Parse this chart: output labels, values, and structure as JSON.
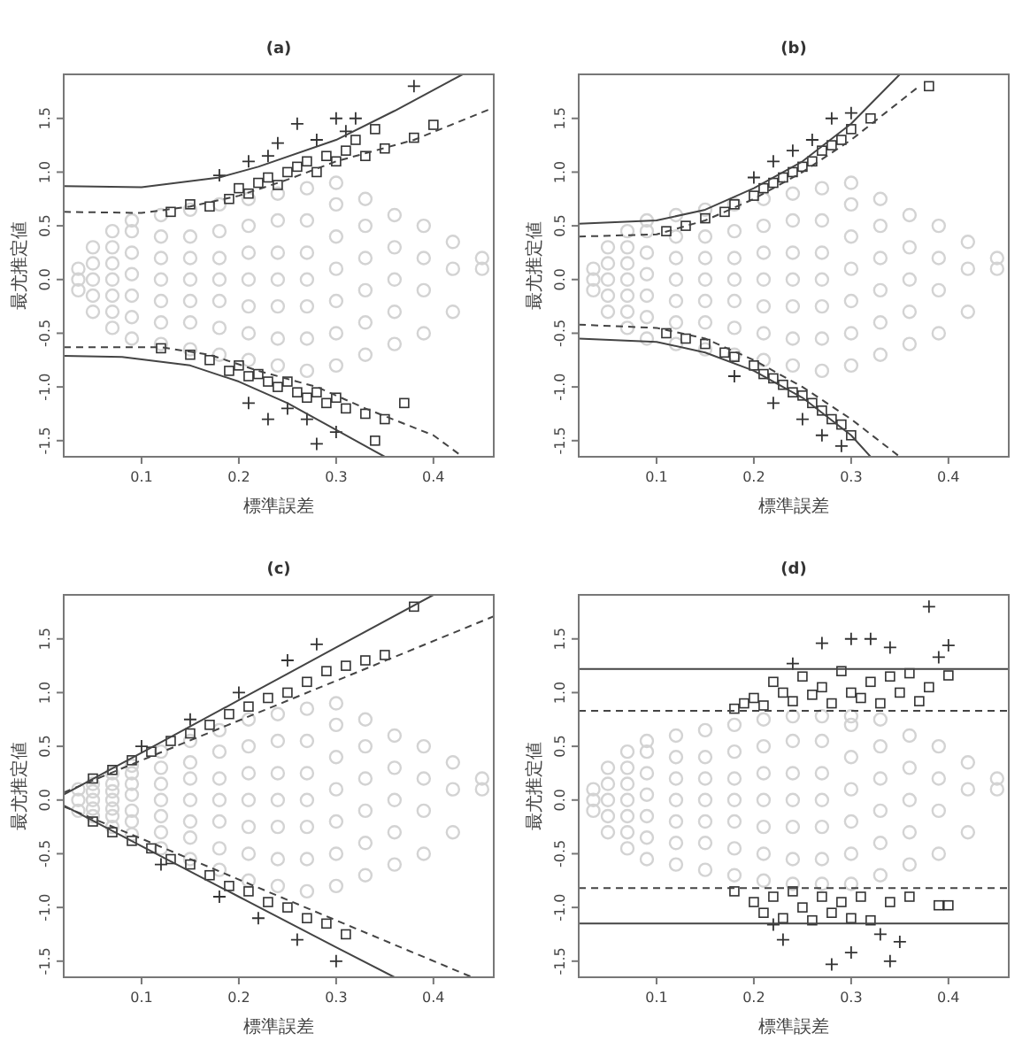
{
  "chart_data": [
    {
      "type": "scatter",
      "title": "(a)",
      "xlabel": "標準誤差",
      "ylabel": "最尤推定値",
      "xlim": [
        0.02,
        0.462
      ],
      "ylim": [
        -1.65,
        1.91
      ],
      "xticks": [
        0.1,
        0.2,
        0.3,
        0.4
      ],
      "yticks": [
        -1.5,
        {
          "value": -1,
          "label": "-1.0"
        },
        -0.5,
        {
          "value": 0,
          "label": "0.0"
        },
        0.5,
        {
          "value": 1,
          "label": "1.0"
        },
        1.5
      ],
      "series": [
        {
          "type": "scatter",
          "marker": "circle",
          "color": "#d3d3d3",
          "x": [
            0.035,
            0.035,
            0.035,
            0.05,
            0.05,
            0.05,
            0.05,
            0.05,
            0.07,
            0.07,
            0.07,
            0.07,
            0.07,
            0.07,
            0.07,
            0.09,
            0.09,
            0.09,
            0.09,
            0.09,
            0.09,
            0.09,
            0.12,
            0.12,
            0.12,
            0.12,
            0.12,
            0.12,
            0.12,
            0.15,
            0.15,
            0.15,
            0.15,
            0.15,
            0.15,
            0.15,
            0.18,
            0.18,
            0.18,
            0.18,
            0.18,
            0.18,
            0.18,
            0.21,
            0.21,
            0.21,
            0.21,
            0.21,
            0.21,
            0.21,
            0.24,
            0.24,
            0.24,
            0.24,
            0.24,
            0.24,
            0.24,
            0.27,
            0.27,
            0.27,
            0.27,
            0.27,
            0.27,
            0.27,
            0.3,
            0.3,
            0.3,
            0.3,
            0.3,
            0.3,
            0.3,
            0.33,
            0.33,
            0.33,
            0.33,
            0.33,
            0.33,
            0.36,
            0.36,
            0.36,
            0.36,
            0.36,
            0.39,
            0.39,
            0.39,
            0.39,
            0.42,
            0.42,
            0.42,
            0.45,
            0.45
          ],
          "values": [
            -0.1,
            0,
            0.1,
            -0.3,
            -0.15,
            0,
            0.15,
            0.3,
            -0.45,
            -0.3,
            -0.15,
            0,
            0.15,
            0.3,
            0.45,
            -0.55,
            -0.35,
            -0.15,
            0.05,
            0.25,
            0.45,
            0.55,
            -0.6,
            -0.4,
            -0.2,
            0,
            0.2,
            0.4,
            0.6,
            -0.65,
            -0.4,
            -0.2,
            0,
            0.2,
            0.4,
            0.65,
            -0.7,
            -0.45,
            -0.2,
            0,
            0.2,
            0.45,
            0.7,
            -0.75,
            -0.5,
            -0.25,
            0,
            0.25,
            0.5,
            0.75,
            -0.8,
            -0.55,
            -0.25,
            0,
            0.25,
            0.55,
            0.8,
            -0.85,
            -0.55,
            -0.25,
            0,
            0.25,
            0.55,
            0.85,
            -0.8,
            -0.5,
            -0.2,
            0.1,
            0.4,
            0.7,
            0.9,
            -0.7,
            -0.4,
            -0.1,
            0.2,
            0.5,
            0.75,
            -0.6,
            -0.3,
            0,
            0.3,
            0.6,
            -0.5,
            -0.1,
            0.2,
            0.5,
            -0.3,
            0.1,
            0.35,
            0.1,
            0.2
          ]
        },
        {
          "type": "scatter",
          "marker": "square",
          "color": "#333333",
          "x": [
            0.13,
            0.15,
            0.17,
            0.19,
            0.2,
            0.21,
            0.22,
            0.23,
            0.24,
            0.25,
            0.26,
            0.27,
            0.28,
            0.29,
            0.3,
            0.31,
            0.32,
            0.33,
            0.35,
            0.38,
            0.4,
            0.34,
            0.12,
            0.15,
            0.17,
            0.19,
            0.2,
            0.21,
            0.22,
            0.23,
            0.24,
            0.25,
            0.26,
            0.27,
            0.28,
            0.29,
            0.3,
            0.31,
            0.33,
            0.35,
            0.34,
            0.37
          ],
          "values": [
            0.63,
            0.7,
            0.68,
            0.75,
            0.85,
            0.8,
            0.9,
            0.95,
            0.88,
            1.0,
            1.05,
            1.1,
            1.0,
            1.15,
            1.1,
            1.2,
            1.3,
            1.15,
            1.22,
            1.32,
            1.44,
            1.4,
            -0.64,
            -0.7,
            -0.75,
            -0.85,
            -0.8,
            -0.9,
            -0.88,
            -0.95,
            -1.0,
            -0.95,
            -1.05,
            -1.1,
            -1.05,
            -1.15,
            -1.1,
            -1.2,
            -1.25,
            -1.3,
            -1.5,
            -1.15
          ]
        },
        {
          "type": "scatter",
          "marker": "cross",
          "color": "#333333",
          "x": [
            0.18,
            0.21,
            0.23,
            0.24,
            0.26,
            0.28,
            0.3,
            0.32,
            0.31,
            0.38,
            0.21,
            0.23,
            0.25,
            0.28,
            0.3,
            0.27
          ],
          "values": [
            0.97,
            1.1,
            1.15,
            1.27,
            1.45,
            1.3,
            1.5,
            1.5,
            1.38,
            1.8,
            -1.15,
            -1.3,
            -1.2,
            -1.53,
            -1.42,
            -1.3
          ]
        },
        {
          "type": "line",
          "line_style": "solid",
          "color": "#444444",
          "x": [
            0.02,
            0.1,
            0.18,
            0.22,
            0.3,
            0.36,
            0.43
          ],
          "values": [
            0.87,
            0.86,
            0.95,
            1.05,
            1.3,
            1.57,
            1.91
          ]
        },
        {
          "type": "line",
          "line_style": "solid",
          "color": "#444444",
          "x": [
            0.02,
            0.08,
            0.15,
            0.2,
            0.25,
            0.3,
            0.35
          ],
          "values": [
            -0.71,
            -0.72,
            -0.8,
            -0.95,
            -1.15,
            -1.4,
            -1.65
          ]
        },
        {
          "type": "line",
          "line_style": "dashed",
          "color": "#444444",
          "x": [
            0.02,
            0.1,
            0.15,
            0.2,
            0.25,
            0.3,
            0.38,
            0.462
          ],
          "values": [
            0.63,
            0.62,
            0.68,
            0.78,
            0.93,
            1.1,
            1.3,
            1.6
          ]
        },
        {
          "type": "line",
          "line_style": "dashed",
          "color": "#444444",
          "x": [
            0.02,
            0.12,
            0.17,
            0.22,
            0.28,
            0.33,
            0.4,
            0.43
          ],
          "values": [
            -0.63,
            -0.63,
            -0.7,
            -0.85,
            -1.0,
            -1.2,
            -1.45,
            -1.65
          ]
        }
      ]
    },
    {
      "type": "scatter",
      "title": "(b)",
      "xlabel": "標準誤差",
      "ylabel": "最尤推定値",
      "xlim": [
        0.02,
        0.462
      ],
      "ylim": [
        -1.65,
        1.91
      ],
      "xticks": [
        0.1,
        0.2,
        0.3,
        0.4
      ],
      "yticks": [
        -1.5,
        {
          "value": -1,
          "label": "-1.0"
        },
        -0.5,
        {
          "value": 0,
          "label": "0.0"
        },
        0.5,
        {
          "value": 1,
          "label": "1.0"
        },
        1.5
      ],
      "series": [
        {
          "type": "scatter",
          "marker": "circle",
          "color": "#d3d3d3",
          "x": [
            0.035,
            0.035,
            0.035,
            0.05,
            0.05,
            0.05,
            0.05,
            0.05,
            0.07,
            0.07,
            0.07,
            0.07,
            0.07,
            0.07,
            0.07,
            0.09,
            0.09,
            0.09,
            0.09,
            0.09,
            0.09,
            0.09,
            0.12,
            0.12,
            0.12,
            0.12,
            0.12,
            0.12,
            0.12,
            0.15,
            0.15,
            0.15,
            0.15,
            0.15,
            0.15,
            0.15,
            0.18,
            0.18,
            0.18,
            0.18,
            0.18,
            0.18,
            0.18,
            0.21,
            0.21,
            0.21,
            0.21,
            0.21,
            0.21,
            0.21,
            0.24,
            0.24,
            0.24,
            0.24,
            0.24,
            0.24,
            0.24,
            0.27,
            0.27,
            0.27,
            0.27,
            0.27,
            0.27,
            0.27,
            0.3,
            0.3,
            0.3,
            0.3,
            0.3,
            0.3,
            0.3,
            0.33,
            0.33,
            0.33,
            0.33,
            0.33,
            0.33,
            0.36,
            0.36,
            0.36,
            0.36,
            0.36,
            0.39,
            0.39,
            0.39,
            0.39,
            0.42,
            0.42,
            0.42,
            0.45,
            0.45
          ],
          "values": [
            -0.1,
            0,
            0.1,
            -0.3,
            -0.15,
            0,
            0.15,
            0.3,
            -0.45,
            -0.3,
            -0.15,
            0,
            0.15,
            0.3,
            0.45,
            -0.55,
            -0.35,
            -0.15,
            0.05,
            0.25,
            0.45,
            0.55,
            -0.6,
            -0.4,
            -0.2,
            0,
            0.2,
            0.4,
            0.6,
            -0.65,
            -0.4,
            -0.2,
            0,
            0.2,
            0.4,
            0.65,
            -0.7,
            -0.45,
            -0.2,
            0,
            0.2,
            0.45,
            0.7,
            -0.75,
            -0.5,
            -0.25,
            0,
            0.25,
            0.5,
            0.75,
            -0.8,
            -0.55,
            -0.25,
            0,
            0.25,
            0.55,
            0.8,
            -0.85,
            -0.55,
            -0.25,
            0,
            0.25,
            0.55,
            0.85,
            -0.8,
            -0.5,
            -0.2,
            0.1,
            0.4,
            0.7,
            0.9,
            -0.7,
            -0.4,
            -0.1,
            0.2,
            0.5,
            0.75,
            -0.6,
            -0.3,
            0,
            0.3,
            0.6,
            -0.5,
            -0.1,
            0.2,
            0.5,
            -0.3,
            0.1,
            0.35,
            0.1,
            0.2
          ]
        },
        {
          "type": "scatter",
          "marker": "square",
          "color": "#333333",
          "x": [
            0.11,
            0.13,
            0.15,
            0.17,
            0.18,
            0.2,
            0.21,
            0.22,
            0.23,
            0.24,
            0.25,
            0.26,
            0.27,
            0.28,
            0.29,
            0.3,
            0.32,
            0.38,
            0.11,
            0.13,
            0.15,
            0.17,
            0.18,
            0.2,
            0.21,
            0.22,
            0.23,
            0.24,
            0.25,
            0.26,
            0.27,
            0.28,
            0.29,
            0.3
          ],
          "values": [
            0.45,
            0.5,
            0.57,
            0.63,
            0.7,
            0.78,
            0.85,
            0.9,
            0.95,
            1.0,
            1.05,
            1.1,
            1.2,
            1.25,
            1.3,
            1.4,
            1.5,
            1.8,
            -0.5,
            -0.55,
            -0.6,
            -0.68,
            -0.72,
            -0.8,
            -0.88,
            -0.92,
            -0.98,
            -1.05,
            -1.08,
            -1.15,
            -1.22,
            -1.3,
            -1.35,
            -1.45
          ]
        },
        {
          "type": "scatter",
          "marker": "cross",
          "color": "#333333",
          "x": [
            0.2,
            0.22,
            0.24,
            0.26,
            0.28,
            0.3,
            0.18,
            0.22,
            0.25,
            0.27,
            0.29
          ],
          "values": [
            0.95,
            1.1,
            1.2,
            1.3,
            1.5,
            1.55,
            -0.9,
            -1.15,
            -1.3,
            -1.45,
            -1.55
          ]
        },
        {
          "type": "line",
          "line_style": "solid",
          "color": "#444444",
          "x": [
            0.02,
            0.1,
            0.15,
            0.2,
            0.25,
            0.3,
            0.35
          ],
          "values": [
            0.52,
            0.55,
            0.65,
            0.85,
            1.1,
            1.45,
            1.91
          ]
        },
        {
          "type": "line",
          "line_style": "solid",
          "color": "#444444",
          "x": [
            0.02,
            0.1,
            0.15,
            0.2,
            0.25,
            0.3,
            0.32
          ],
          "values": [
            -0.55,
            -0.58,
            -0.68,
            -0.85,
            -1.1,
            -1.45,
            -1.65
          ]
        },
        {
          "type": "line",
          "line_style": "dashed",
          "color": "#444444",
          "x": [
            0.02,
            0.1,
            0.15,
            0.2,
            0.25,
            0.3,
            0.37
          ],
          "values": [
            0.4,
            0.42,
            0.55,
            0.75,
            1.0,
            1.3,
            1.8
          ]
        },
        {
          "type": "line",
          "line_style": "dashed",
          "color": "#444444",
          "x": [
            0.02,
            0.1,
            0.15,
            0.2,
            0.25,
            0.3,
            0.35
          ],
          "values": [
            -0.42,
            -0.45,
            -0.55,
            -0.75,
            -1.0,
            -1.3,
            -1.65
          ]
        }
      ]
    },
    {
      "type": "scatter",
      "title": "(c)",
      "xlabel": "標準誤差",
      "ylabel": "最尤推定値",
      "xlim": [
        0.02,
        0.462
      ],
      "ylim": [
        -1.65,
        1.91
      ],
      "xticks": [
        0.1,
        0.2,
        0.3,
        0.4
      ],
      "yticks": [
        -1.5,
        {
          "value": -1,
          "label": "-1.0"
        },
        -0.5,
        {
          "value": 0,
          "label": "0.0"
        },
        0.5,
        {
          "value": 1,
          "label": "1.0"
        },
        1.5
      ],
      "series": [
        {
          "type": "scatter",
          "marker": "circle",
          "color": "#d3d3d3",
          "x": [
            0.035,
            0.035,
            0.035,
            0.05,
            0.05,
            0.05,
            0.05,
            0.05,
            0.07,
            0.07,
            0.07,
            0.07,
            0.07,
            0.07,
            0.07,
            0.09,
            0.09,
            0.09,
            0.09,
            0.09,
            0.09,
            0.09,
            0.12,
            0.12,
            0.12,
            0.12,
            0.12,
            0.12,
            0.12,
            0.15,
            0.15,
            0.15,
            0.15,
            0.15,
            0.15,
            0.15,
            0.18,
            0.18,
            0.18,
            0.18,
            0.18,
            0.18,
            0.18,
            0.21,
            0.21,
            0.21,
            0.21,
            0.21,
            0.21,
            0.21,
            0.24,
            0.24,
            0.24,
            0.24,
            0.24,
            0.24,
            0.24,
            0.27,
            0.27,
            0.27,
            0.27,
            0.27,
            0.27,
            0.27,
            0.3,
            0.3,
            0.3,
            0.3,
            0.3,
            0.3,
            0.3,
            0.33,
            0.33,
            0.33,
            0.33,
            0.33,
            0.33,
            0.36,
            0.36,
            0.36,
            0.36,
            0.36,
            0.39,
            0.39,
            0.39,
            0.39,
            0.42,
            0.42,
            0.42,
            0.45,
            0.45
          ],
          "values": [
            -0.1,
            0,
            0.1,
            -0.15,
            -0.08,
            0,
            0.08,
            0.15,
            -0.25,
            -0.15,
            -0.08,
            0,
            0.08,
            0.15,
            0.25,
            -0.32,
            -0.2,
            -0.1,
            0.05,
            0.15,
            0.25,
            0.32,
            -0.45,
            -0.3,
            -0.15,
            0,
            0.15,
            0.3,
            0.45,
            -0.55,
            -0.35,
            -0.2,
            0,
            0.2,
            0.35,
            0.55,
            -0.65,
            -0.45,
            -0.2,
            0,
            0.2,
            0.45,
            0.65,
            -0.75,
            -0.5,
            -0.25,
            0,
            0.25,
            0.5,
            0.75,
            -0.8,
            -0.55,
            -0.25,
            0,
            0.25,
            0.55,
            0.8,
            -0.85,
            -0.55,
            -0.25,
            0,
            0.25,
            0.55,
            0.85,
            -0.8,
            -0.5,
            -0.2,
            0.1,
            0.4,
            0.7,
            0.9,
            -0.7,
            -0.4,
            -0.1,
            0.2,
            0.5,
            0.75,
            -0.6,
            -0.3,
            0,
            0.3,
            0.6,
            -0.5,
            -0.1,
            0.2,
            0.5,
            -0.3,
            0.1,
            0.35,
            0.1,
            0.2
          ]
        },
        {
          "type": "scatter",
          "marker": "square",
          "color": "#333333",
          "x": [
            0.05,
            0.07,
            0.09,
            0.11,
            0.13,
            0.15,
            0.17,
            0.19,
            0.21,
            0.23,
            0.25,
            0.27,
            0.29,
            0.31,
            0.33,
            0.35,
            0.38,
            0.05,
            0.07,
            0.09,
            0.11,
            0.13,
            0.15,
            0.17,
            0.19,
            0.21,
            0.23,
            0.25,
            0.27,
            0.29,
            0.31
          ],
          "values": [
            0.2,
            0.28,
            0.37,
            0.45,
            0.55,
            0.62,
            0.7,
            0.8,
            0.87,
            0.95,
            1.0,
            1.1,
            1.2,
            1.25,
            1.3,
            1.35,
            1.8,
            -0.2,
            -0.3,
            -0.38,
            -0.45,
            -0.55,
            -0.6,
            -0.7,
            -0.8,
            -0.85,
            -0.95,
            -1.0,
            -1.1,
            -1.15,
            -1.25
          ]
        },
        {
          "type": "scatter",
          "marker": "cross",
          "color": "#333333",
          "x": [
            0.1,
            0.15,
            0.2,
            0.25,
            0.28,
            0.12,
            0.18,
            0.22,
            0.26,
            0.3
          ],
          "values": [
            0.5,
            0.75,
            1.0,
            1.3,
            1.45,
            -0.6,
            -0.9,
            -1.1,
            -1.3,
            -1.5
          ]
        },
        {
          "type": "line",
          "line_style": "solid",
          "color": "#444444",
          "x": [
            0.02,
            0.1,
            0.2,
            0.3,
            0.4
          ],
          "values": [
            0.05,
            0.44,
            0.93,
            1.42,
            1.91
          ]
        },
        {
          "type": "line",
          "line_style": "solid",
          "color": "#444444",
          "x": [
            0.02,
            0.1,
            0.2,
            0.3,
            0.36
          ],
          "values": [
            -0.05,
            -0.43,
            -0.9,
            -1.37,
            -1.65
          ]
        },
        {
          "type": "line",
          "line_style": "dashed",
          "color": "#444444",
          "x": [
            0.02,
            0.1,
            0.2,
            0.3,
            0.462
          ],
          "values": [
            0.07,
            0.37,
            0.74,
            1.11,
            1.71
          ]
        },
        {
          "type": "line",
          "line_style": "dashed",
          "color": "#444444",
          "x": [
            0.02,
            0.1,
            0.2,
            0.3,
            0.44
          ],
          "values": [
            -0.06,
            -0.36,
            -0.74,
            -1.12,
            -1.65
          ]
        }
      ]
    },
    {
      "type": "scatter",
      "title": "(d)",
      "xlabel": "標準誤差",
      "ylabel": "最尤推定値",
      "xlim": [
        0.02,
        0.462
      ],
      "ylim": [
        -1.65,
        1.91
      ],
      "xticks": [
        0.1,
        0.2,
        0.3,
        0.4
      ],
      "yticks": [
        -1.5,
        {
          "value": -1,
          "label": "-1.0"
        },
        -0.5,
        {
          "value": 0,
          "label": "0.0"
        },
        0.5,
        {
          "value": 1,
          "label": "1.0"
        },
        1.5
      ],
      "ref_lines": [
        {
          "axis": "y",
          "value": 1.22,
          "line_style": "solid",
          "color": "#444444"
        },
        {
          "axis": "y",
          "value": 0.83,
          "line_style": "dashed",
          "color": "#444444"
        },
        {
          "axis": "y",
          "value": -0.82,
          "line_style": "dashed",
          "color": "#444444"
        },
        {
          "axis": "y",
          "value": -1.15,
          "line_style": "solid",
          "color": "#444444"
        }
      ],
      "series": [
        {
          "type": "scatter",
          "marker": "circle",
          "color": "#d3d3d3",
          "x": [
            0.035,
            0.035,
            0.035,
            0.05,
            0.05,
            0.05,
            0.05,
            0.05,
            0.07,
            0.07,
            0.07,
            0.07,
            0.07,
            0.07,
            0.07,
            0.09,
            0.09,
            0.09,
            0.09,
            0.09,
            0.09,
            0.09,
            0.12,
            0.12,
            0.12,
            0.12,
            0.12,
            0.12,
            0.12,
            0.15,
            0.15,
            0.15,
            0.15,
            0.15,
            0.15,
            0.15,
            0.18,
            0.18,
            0.18,
            0.18,
            0.18,
            0.18,
            0.18,
            0.21,
            0.21,
            0.21,
            0.21,
            0.21,
            0.21,
            0.21,
            0.24,
            0.24,
            0.24,
            0.24,
            0.24,
            0.24,
            0.24,
            0.27,
            0.27,
            0.27,
            0.27,
            0.27,
            0.27,
            0.27,
            0.3,
            0.3,
            0.3,
            0.3,
            0.3,
            0.3,
            0.3,
            0.33,
            0.33,
            0.33,
            0.33,
            0.33,
            0.33,
            0.36,
            0.36,
            0.36,
            0.36,
            0.36,
            0.39,
            0.39,
            0.39,
            0.39,
            0.42,
            0.42,
            0.42,
            0.45,
            0.45
          ],
          "values": [
            -0.1,
            0,
            0.1,
            -0.3,
            -0.15,
            0,
            0.15,
            0.3,
            -0.45,
            -0.3,
            -0.15,
            0,
            0.15,
            0.3,
            0.45,
            -0.55,
            -0.35,
            -0.15,
            0.05,
            0.25,
            0.45,
            0.55,
            -0.6,
            -0.4,
            -0.2,
            0,
            0.2,
            0.4,
            0.6,
            -0.65,
            -0.4,
            -0.2,
            0,
            0.2,
            0.4,
            0.65,
            -0.7,
            -0.45,
            -0.2,
            0,
            0.2,
            0.45,
            0.7,
            -0.75,
            -0.5,
            -0.25,
            0,
            0.25,
            0.5,
            0.75,
            -0.78,
            -0.55,
            -0.25,
            0,
            0.25,
            0.55,
            0.78,
            -0.78,
            -0.55,
            -0.25,
            0,
            0.25,
            0.55,
            0.78,
            -0.78,
            -0.5,
            -0.2,
            0.1,
            0.4,
            0.7,
            0.78,
            -0.7,
            -0.4,
            -0.1,
            0.2,
            0.5,
            0.75,
            -0.6,
            -0.3,
            0,
            0.3,
            0.6,
            -0.5,
            -0.1,
            0.2,
            0.5,
            -0.3,
            0.1,
            0.35,
            0.1,
            0.2
          ]
        },
        {
          "type": "scatter",
          "marker": "square",
          "color": "#333333",
          "x": [
            0.18,
            0.19,
            0.2,
            0.21,
            0.22,
            0.23,
            0.24,
            0.25,
            0.26,
            0.27,
            0.28,
            0.29,
            0.3,
            0.31,
            0.32,
            0.33,
            0.34,
            0.35,
            0.37,
            0.38,
            0.4,
            0.36,
            0.18,
            0.2,
            0.21,
            0.22,
            0.23,
            0.24,
            0.25,
            0.26,
            0.27,
            0.28,
            0.29,
            0.3,
            0.31,
            0.32,
            0.34,
            0.36,
            0.39,
            0.4
          ],
          "values": [
            0.85,
            0.9,
            0.95,
            0.88,
            1.1,
            1.0,
            0.92,
            1.15,
            0.98,
            1.05,
            0.9,
            1.2,
            1.0,
            0.95,
            1.1,
            0.9,
            1.15,
            1.0,
            0.92,
            1.05,
            1.16,
            1.18,
            -0.85,
            -0.95,
            -1.05,
            -0.9,
            -1.1,
            -0.85,
            -1.0,
            -1.12,
            -0.9,
            -1.05,
            -0.95,
            -1.1,
            -0.9,
            -1.12,
            -0.95,
            -0.9,
            -0.98,
            -0.98
          ]
        },
        {
          "type": "scatter",
          "marker": "cross",
          "color": "#333333",
          "x": [
            0.24,
            0.27,
            0.3,
            0.32,
            0.34,
            0.39,
            0.4,
            0.38,
            0.22,
            0.23,
            0.28,
            0.3,
            0.33,
            0.35,
            0.34
          ],
          "values": [
            1.27,
            1.46,
            1.5,
            1.5,
            1.42,
            1.33,
            1.44,
            1.8,
            -1.16,
            -1.3,
            -1.53,
            -1.42,
            -1.25,
            -1.32,
            -1.5
          ]
        }
      ]
    }
  ]
}
